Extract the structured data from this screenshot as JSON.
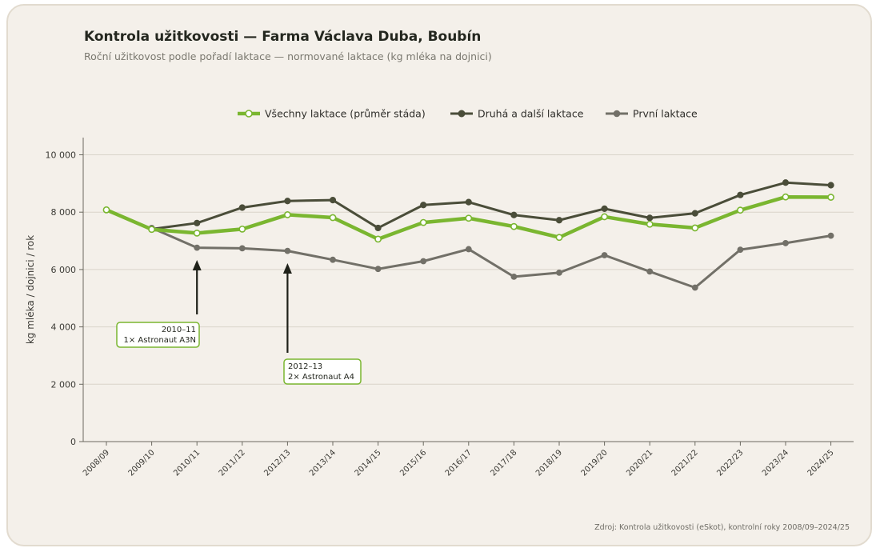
{
  "header": {
    "title": "Kontrola užitkovosti — Farma Václava Duba, Boubín",
    "subtitle": "Roční užitkovost podle pořadí laktace — normované laktace (kg mléka na dojnici)"
  },
  "footer": {
    "source": "Zdroj: Kontrola užitkovosti (eSkot), kontrolní roky 2008/09–2024/25"
  },
  "colors": {
    "all": "#7ab630",
    "second_plus": "#4a4d39",
    "first": "#727068",
    "annotation_border": "#7ab630"
  },
  "chart_data": {
    "type": "line",
    "title": "Kontrola užitkovosti — Farma Václava Duba, Boubín",
    "subtitle": "Roční užitkovost podle pořadí laktace — normované laktace (kg mléka na dojnici)",
    "xlabel": "",
    "ylabel": "kg mléka / dojnici / rok",
    "ylim": [
      0,
      10600
    ],
    "yticks": [
      0,
      2000,
      4000,
      6000,
      8000,
      10000
    ],
    "ytick_labels": [
      "0",
      "2 000",
      "4 000",
      "6 000",
      "8 000",
      "10 000"
    ],
    "grid": "horizontal",
    "legend_position": "top-center",
    "x": [
      "2008/09",
      "2009/10",
      "2010/11",
      "2011/12",
      "2012/13",
      "2013/14",
      "2014/15",
      "2015/16",
      "2016/17",
      "2017/18",
      "2018/19",
      "2019/20",
      "2020/21",
      "2021/22",
      "2022/23",
      "2023/24",
      "2024/25"
    ],
    "series": [
      {
        "key": "all",
        "name": "Všechny laktace (průměr stáda)",
        "values": [
          8080,
          7400,
          7270,
          7410,
          7910,
          7810,
          7060,
          7640,
          7790,
          7500,
          7120,
          7840,
          7580,
          7450,
          8070,
          8530,
          8520
        ]
      },
      {
        "key": "second_plus",
        "name": "Druhá a další laktace",
        "values": [
          null,
          7410,
          7620,
          8160,
          8390,
          8420,
          7450,
          8250,
          8350,
          7900,
          7720,
          8120,
          7800,
          7960,
          8600,
          9030,
          8940
        ]
      },
      {
        "key": "first",
        "name": "První laktace",
        "values": [
          null,
          7450,
          6760,
          6740,
          6650,
          6340,
          6020,
          6290,
          6710,
          5750,
          5890,
          6500,
          5930,
          5370,
          6690,
          6920,
          7180
        ]
      }
    ],
    "annotations": [
      {
        "x": "2010/11",
        "line1": "2010–11",
        "line2": "1× Astronaut A3N"
      },
      {
        "x": "2012/13",
        "line1": "2012–13",
        "line2": "2× Astronaut A4"
      }
    ]
  }
}
